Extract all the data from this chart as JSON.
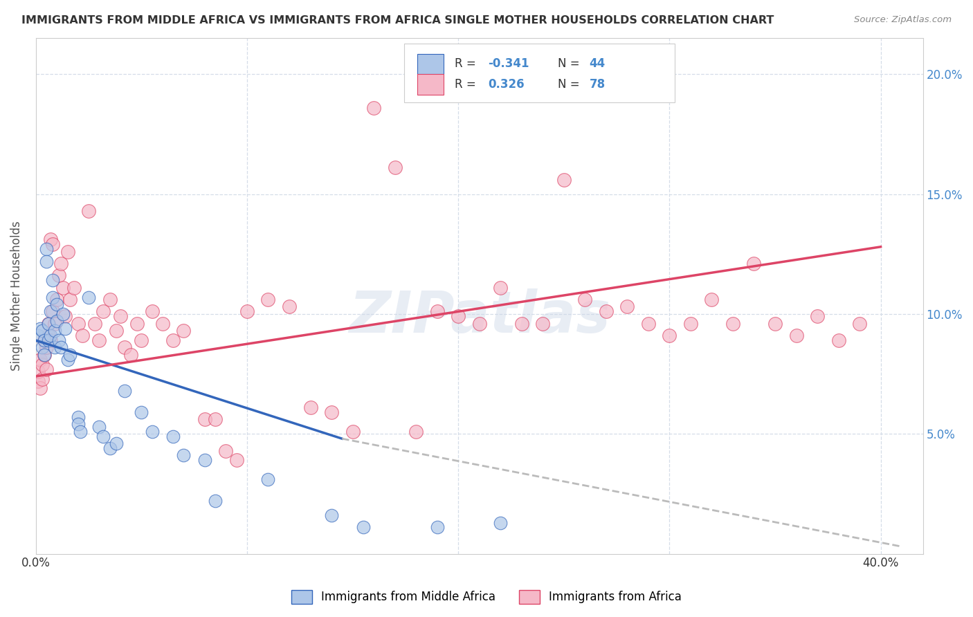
{
  "title": "IMMIGRANTS FROM MIDDLE AFRICA VS IMMIGRANTS FROM AFRICA SINGLE MOTHER HOUSEHOLDS CORRELATION CHART",
  "source": "Source: ZipAtlas.com",
  "ylabel": "Single Mother Households",
  "watermark": "ZIPatlas",
  "blue_color": "#adc6e8",
  "pink_color": "#f5b8c8",
  "blue_line_color": "#3366bb",
  "pink_line_color": "#dd4466",
  "dash_line_color": "#bbbbbb",
  "grid_color": "#d5dde8",
  "blue_scatter": [
    [
      0.001,
      0.091
    ],
    [
      0.002,
      0.094
    ],
    [
      0.003,
      0.086
    ],
    [
      0.003,
      0.093
    ],
    [
      0.004,
      0.089
    ],
    [
      0.004,
      0.083
    ],
    [
      0.005,
      0.127
    ],
    [
      0.005,
      0.122
    ],
    [
      0.006,
      0.096
    ],
    [
      0.006,
      0.089
    ],
    [
      0.007,
      0.091
    ],
    [
      0.007,
      0.101
    ],
    [
      0.008,
      0.114
    ],
    [
      0.008,
      0.107
    ],
    [
      0.009,
      0.086
    ],
    [
      0.009,
      0.093
    ],
    [
      0.01,
      0.104
    ],
    [
      0.01,
      0.097
    ],
    [
      0.011,
      0.089
    ],
    [
      0.012,
      0.086
    ],
    [
      0.013,
      0.1
    ],
    [
      0.014,
      0.094
    ],
    [
      0.015,
      0.081
    ],
    [
      0.016,
      0.083
    ],
    [
      0.02,
      0.057
    ],
    [
      0.02,
      0.054
    ],
    [
      0.021,
      0.051
    ],
    [
      0.025,
      0.107
    ],
    [
      0.03,
      0.053
    ],
    [
      0.032,
      0.049
    ],
    [
      0.035,
      0.044
    ],
    [
      0.038,
      0.046
    ],
    [
      0.042,
      0.068
    ],
    [
      0.05,
      0.059
    ],
    [
      0.055,
      0.051
    ],
    [
      0.065,
      0.049
    ],
    [
      0.07,
      0.041
    ],
    [
      0.08,
      0.039
    ],
    [
      0.085,
      0.022
    ],
    [
      0.11,
      0.031
    ],
    [
      0.14,
      0.016
    ],
    [
      0.155,
      0.011
    ],
    [
      0.19,
      0.011
    ],
    [
      0.22,
      0.013
    ]
  ],
  "pink_scatter": [
    [
      0.001,
      0.072
    ],
    [
      0.001,
      0.076
    ],
    [
      0.002,
      0.069
    ],
    [
      0.002,
      0.081
    ],
    [
      0.003,
      0.073
    ],
    [
      0.003,
      0.079
    ],
    [
      0.004,
      0.083
    ],
    [
      0.004,
      0.089
    ],
    [
      0.005,
      0.086
    ],
    [
      0.005,
      0.077
    ],
    [
      0.006,
      0.091
    ],
    [
      0.006,
      0.096
    ],
    [
      0.007,
      0.089
    ],
    [
      0.007,
      0.131
    ],
    [
      0.008,
      0.129
    ],
    [
      0.008,
      0.101
    ],
    [
      0.009,
      0.096
    ],
    [
      0.01,
      0.106
    ],
    [
      0.011,
      0.116
    ],
    [
      0.012,
      0.121
    ],
    [
      0.013,
      0.111
    ],
    [
      0.014,
      0.099
    ],
    [
      0.015,
      0.126
    ],
    [
      0.016,
      0.106
    ],
    [
      0.018,
      0.111
    ],
    [
      0.02,
      0.096
    ],
    [
      0.022,
      0.091
    ],
    [
      0.025,
      0.143
    ],
    [
      0.028,
      0.096
    ],
    [
      0.03,
      0.089
    ],
    [
      0.032,
      0.101
    ],
    [
      0.035,
      0.106
    ],
    [
      0.038,
      0.093
    ],
    [
      0.04,
      0.099
    ],
    [
      0.042,
      0.086
    ],
    [
      0.045,
      0.083
    ],
    [
      0.048,
      0.096
    ],
    [
      0.05,
      0.089
    ],
    [
      0.055,
      0.101
    ],
    [
      0.06,
      0.096
    ],
    [
      0.065,
      0.089
    ],
    [
      0.07,
      0.093
    ],
    [
      0.08,
      0.056
    ],
    [
      0.085,
      0.056
    ],
    [
      0.09,
      0.043
    ],
    [
      0.095,
      0.039
    ],
    [
      0.1,
      0.101
    ],
    [
      0.11,
      0.106
    ],
    [
      0.12,
      0.103
    ],
    [
      0.13,
      0.061
    ],
    [
      0.14,
      0.059
    ],
    [
      0.15,
      0.051
    ],
    [
      0.16,
      0.186
    ],
    [
      0.17,
      0.161
    ],
    [
      0.18,
      0.051
    ],
    [
      0.19,
      0.101
    ],
    [
      0.2,
      0.099
    ],
    [
      0.21,
      0.096
    ],
    [
      0.22,
      0.111
    ],
    [
      0.23,
      0.096
    ],
    [
      0.24,
      0.096
    ],
    [
      0.25,
      0.156
    ],
    [
      0.26,
      0.106
    ],
    [
      0.27,
      0.101
    ],
    [
      0.28,
      0.103
    ],
    [
      0.29,
      0.096
    ],
    [
      0.3,
      0.091
    ],
    [
      0.31,
      0.096
    ],
    [
      0.32,
      0.106
    ],
    [
      0.33,
      0.096
    ],
    [
      0.34,
      0.121
    ],
    [
      0.35,
      0.096
    ],
    [
      0.36,
      0.091
    ],
    [
      0.37,
      0.099
    ],
    [
      0.38,
      0.089
    ],
    [
      0.39,
      0.096
    ]
  ],
  "blue_line": {
    "x0": 0.0,
    "y0": 0.089,
    "x1": 0.145,
    "y1": 0.048
  },
  "pink_line": {
    "x0": 0.0,
    "y0": 0.074,
    "x1": 0.4,
    "y1": 0.128
  },
  "dash_line": {
    "x0": 0.145,
    "y0": 0.048,
    "x1": 0.41,
    "y1": 0.003
  },
  "xlim": [
    0.0,
    0.42
  ],
  "ylim": [
    0.0,
    0.215
  ],
  "figsize": [
    14.06,
    8.92
  ],
  "dpi": 100
}
